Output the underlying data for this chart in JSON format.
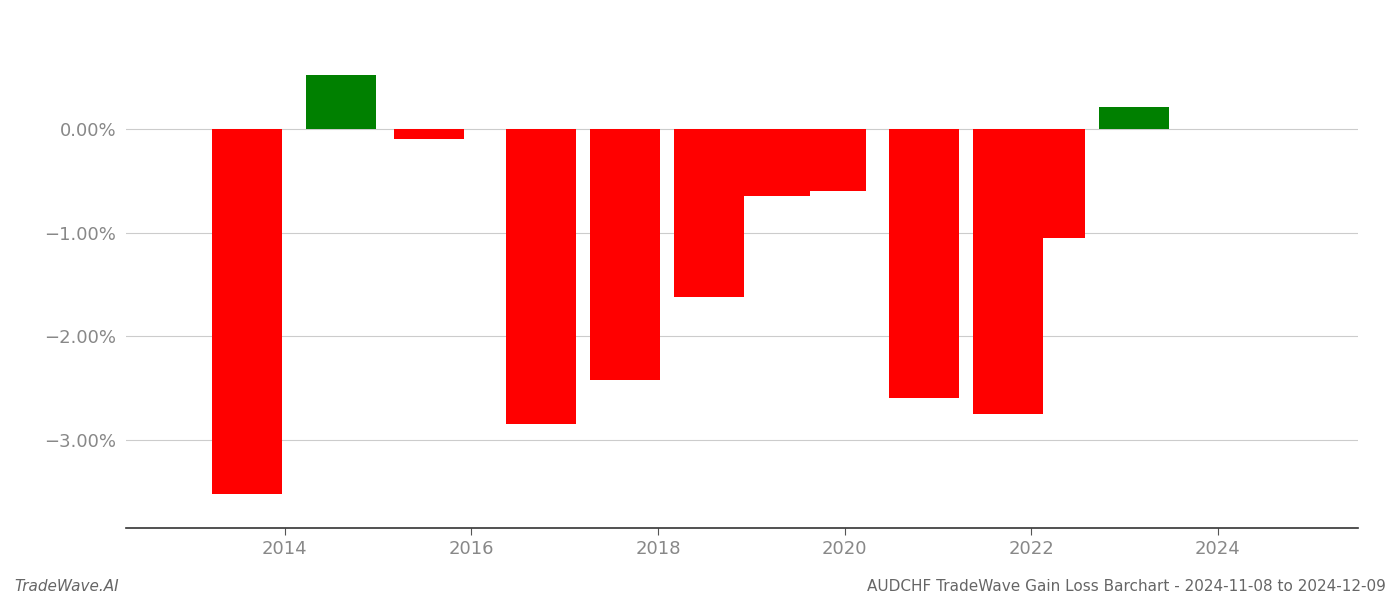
{
  "years": [
    2013.6,
    2014.6,
    2015.55,
    2016.75,
    2017.65,
    2018.55,
    2019.25,
    2019.85,
    2020.85,
    2021.75,
    2022.2,
    2023.1
  ],
  "values": [
    -3.52,
    0.52,
    -0.1,
    -2.85,
    -2.42,
    -1.62,
    -0.65,
    -0.6,
    -2.6,
    -2.75,
    -1.05,
    0.21
  ],
  "colors": [
    "#ff0000",
    "#008000",
    "#ff0000",
    "#ff0000",
    "#ff0000",
    "#ff0000",
    "#ff0000",
    "#ff0000",
    "#ff0000",
    "#ff0000",
    "#ff0000",
    "#008000"
  ],
  "bar_width": 0.75,
  "ylim": [
    -3.85,
    0.78
  ],
  "xlim": [
    2012.3,
    2025.5
  ],
  "xticks": [
    2014,
    2016,
    2018,
    2020,
    2022,
    2024
  ],
  "yticks": [
    0.0,
    -1.0,
    -2.0,
    -3.0
  ],
  "ytick_labels": [
    "0.00%",
    "−1.00%",
    "−2.00%",
    "−3.00%"
  ],
  "footer_left": "TradeWave.AI",
  "footer_right": "AUDCHF TradeWave Gain Loss Barchart - 2024-11-08 to 2024-12-09",
  "background_color": "#ffffff",
  "grid_color": "#cccccc",
  "tick_color": "#888888",
  "footer_color": "#666666"
}
